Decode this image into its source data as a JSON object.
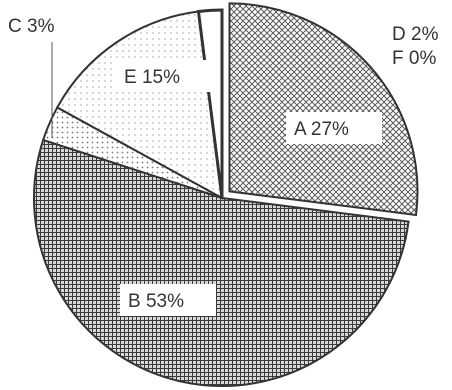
{
  "chart_data": {
    "type": "pie",
    "title": "",
    "slices": [
      {
        "label": "A",
        "value": 27,
        "display": "A 27%",
        "pattern": "crosshatch-diag"
      },
      {
        "label": "B",
        "value": 53,
        "display": "B 53%",
        "pattern": "grid"
      },
      {
        "label": "C",
        "value": 3,
        "display": "C 3%",
        "pattern": "dots"
      },
      {
        "label": "D",
        "value": 2,
        "display": "D 2%",
        "pattern": "none"
      },
      {
        "label": "E",
        "value": 15,
        "display": "E 15%",
        "pattern": "dots-light"
      },
      {
        "label": "F",
        "value": 0,
        "display": "F 0%",
        "pattern": "none"
      }
    ],
    "colors": {
      "stroke": "#333333",
      "ink": "#555555",
      "background": "#ffffff"
    }
  }
}
